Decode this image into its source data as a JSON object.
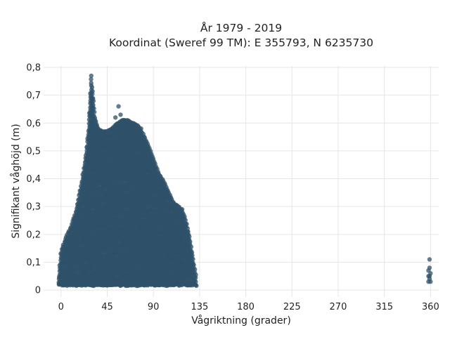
{
  "chart_data": {
    "type": "scatter",
    "title": "År 1979 - 2019",
    "subtitle": "Koordinat (Sweref 99 TM): E 355793, N 6235730",
    "xlabel": "Vågriktning (grader)",
    "ylabel": "Signifikant våghöjd (m)",
    "xlim": [
      -17,
      368
    ],
    "ylim": [
      -0.025,
      0.805
    ],
    "x_ticks": [
      0,
      45,
      90,
      135,
      180,
      225,
      270,
      315,
      360
    ],
    "y_ticks": [
      0,
      0.1,
      0.2,
      0.3,
      0.4,
      0.5,
      0.6,
      0.7,
      0.8
    ],
    "x_tick_labels": [
      "0",
      "45",
      "90",
      "135",
      "180",
      "225",
      "270",
      "315",
      "360"
    ],
    "y_tick_labels": [
      "0",
      "0,1",
      "0,2",
      "0,3",
      "0,4",
      "0,5",
      "0,6",
      "0,7",
      "0,8"
    ],
    "grid": true,
    "marker_color": "#2f5269",
    "envelope": [
      [
        -2,
        0.05
      ],
      [
        0,
        0.14
      ],
      [
        5,
        0.19
      ],
      [
        10,
        0.23
      ],
      [
        15,
        0.29
      ],
      [
        20,
        0.38
      ],
      [
        24,
        0.48
      ],
      [
        27,
        0.58
      ],
      [
        28.5,
        0.7
      ],
      [
        29.5,
        0.77
      ],
      [
        31,
        0.7
      ],
      [
        33,
        0.62
      ],
      [
        36,
        0.58
      ],
      [
        40,
        0.57
      ],
      [
        45,
        0.57
      ],
      [
        50,
        0.58
      ],
      [
        55,
        0.6
      ],
      [
        60,
        0.61
      ],
      [
        65,
        0.61
      ],
      [
        70,
        0.6
      ],
      [
        75,
        0.59
      ],
      [
        80,
        0.56
      ],
      [
        85,
        0.52
      ],
      [
        90,
        0.47
      ],
      [
        95,
        0.42
      ],
      [
        100,
        0.39
      ],
      [
        105,
        0.35
      ],
      [
        110,
        0.31
      ],
      [
        115,
        0.3
      ],
      [
        120,
        0.27
      ],
      [
        124,
        0.21
      ],
      [
        127,
        0.15
      ],
      [
        129,
        0.1
      ],
      [
        131,
        0.06
      ],
      [
        132,
        0.04
      ]
    ],
    "outliers": [
      {
        "x": 56,
        "y": 0.66
      },
      {
        "x": 58,
        "y": 0.63
      },
      {
        "x": 53,
        "y": 0.62
      },
      {
        "x": 61,
        "y": 0.61
      },
      {
        "x": 34,
        "y": 0.6
      },
      {
        "x": 78,
        "y": 0.58
      },
      {
        "x": 118,
        "y": 0.29
      },
      {
        "x": 121,
        "y": 0.24
      }
    ],
    "cluster_360": [
      {
        "x": 359,
        "y": 0.11
      },
      {
        "x": 359,
        "y": 0.08
      },
      {
        "x": 358,
        "y": 0.07
      },
      {
        "x": 360,
        "y": 0.06
      },
      {
        "x": 358,
        "y": 0.05
      },
      {
        "x": 359,
        "y": 0.04
      },
      {
        "x": 360,
        "y": 0.03
      },
      {
        "x": 358,
        "y": 0.03
      },
      {
        "x": 359,
        "y": 0.05
      }
    ]
  }
}
